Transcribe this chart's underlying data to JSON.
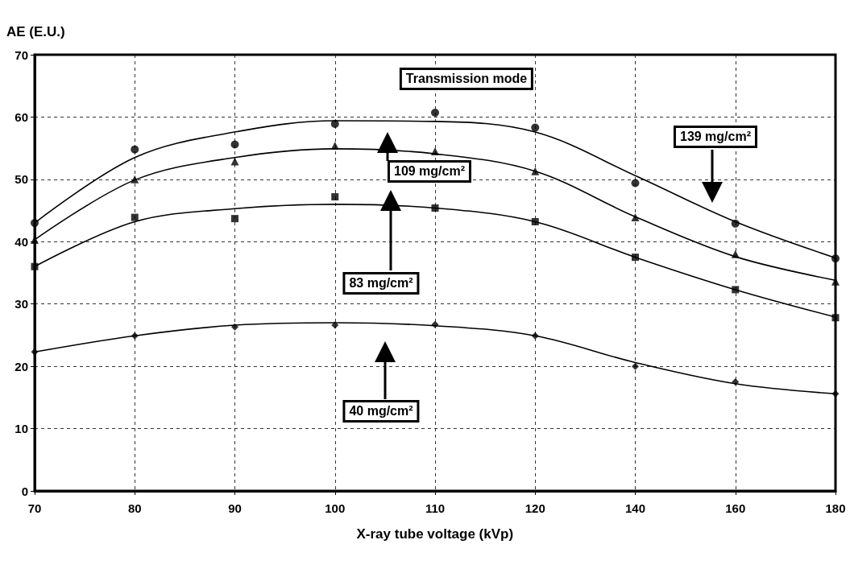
{
  "chart_data": {
    "type": "scatter",
    "ylabel": "AE (E.U.)",
    "xlabel": "X-ray tube voltage (kVp)",
    "categories": [
      "70",
      "80",
      "90",
      "100",
      "110",
      "120",
      "140",
      "160",
      "180"
    ],
    "ylim": [
      0,
      70
    ],
    "yticks": [
      0,
      10,
      20,
      30,
      40,
      50,
      60,
      70
    ],
    "grid": true,
    "annotations": [
      "Transmission mode",
      "109 mg/cm²",
      "83 mg/cm²",
      "40 mg/cm²",
      "139 mg/cm²"
    ],
    "series": [
      {
        "marker": "circle",
        "color": "#000000",
        "values": [
          43.0,
          54.8,
          55.6,
          58.9,
          60.7,
          58.3,
          49.4,
          42.9,
          37.3
        ]
      },
      {
        "marker": "triangle",
        "color": "#000000",
        "values": [
          40.3,
          50.0,
          52.9,
          55.4,
          54.5,
          51.3,
          43.9,
          38.0,
          33.6
        ]
      },
      {
        "marker": "square",
        "color": "#000000",
        "values": [
          36.0,
          43.9,
          43.7,
          47.2,
          45.4,
          43.2,
          37.5,
          32.3,
          27.8
        ]
      },
      {
        "marker": "diamond",
        "color": "#000000",
        "values": [
          22.3,
          24.9,
          26.3,
          26.6,
          26.7,
          24.9,
          20.0,
          17.5,
          15.6
        ]
      },
      {
        "type": "line",
        "marker": "none",
        "color": "#000000",
        "values": [
          43.0,
          53.5,
          57.6,
          59.4,
          59.3,
          57.6,
          50.6,
          43.2,
          37.4
        ]
      },
      {
        "type": "line",
        "marker": "none",
        "color": "#000000",
        "values": [
          40.3,
          49.9,
          53.5,
          54.9,
          54.1,
          51.3,
          44.0,
          37.6,
          33.8
        ]
      },
      {
        "type": "line",
        "marker": "none",
        "color": "#000000",
        "values": [
          36.0,
          43.2,
          45.3,
          46.0,
          45.4,
          43.2,
          37.5,
          32.3,
          27.9
        ]
      },
      {
        "type": "line",
        "marker": "none",
        "color": "#000000",
        "values": [
          22.3,
          24.9,
          26.6,
          27.0,
          26.5,
          24.9,
          20.6,
          17.2,
          15.6
        ]
      }
    ]
  }
}
